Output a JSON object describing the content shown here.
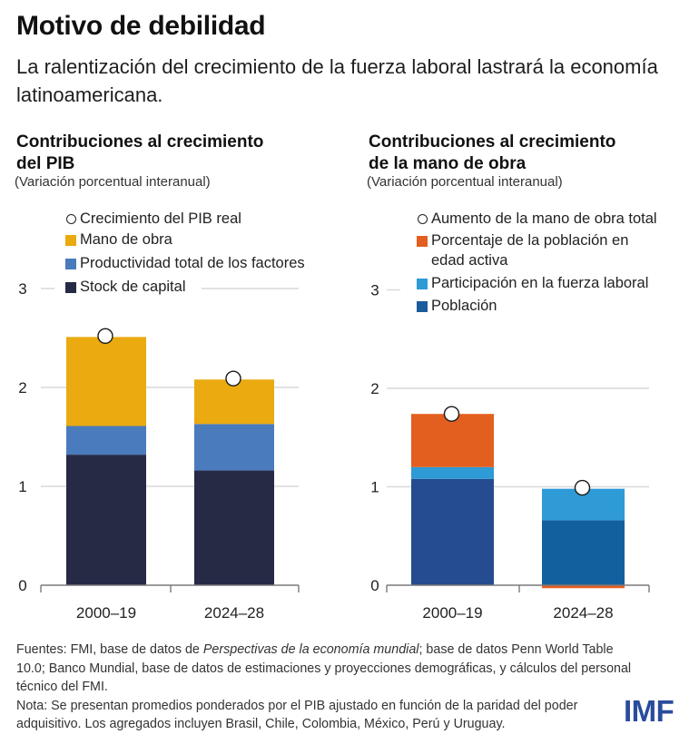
{
  "header": {
    "title": "Motivo de debilidad",
    "subtitle": "La ralentización del crecimiento de la fuerza laboral lastrará la economía latinoamericana."
  },
  "footer": {
    "sources_prefix": "Fuentes: FMI, base de datos de ",
    "sources_italic": "Perspectivas de la economía mundial",
    "sources_suffix": "; base de datos Penn World Table 10.0; Banco Mundial, base de datos de estimaciones y proyecciones demográficas, y cálculos del personal técnico del FMI.",
    "note": "Nota: Se presentan promedios ponderados por el PIB ajustado en función de la paridad del poder adquisitivo. Los agregados incluyen Brasil, Chile, Colombia, México, Perú y Uruguay.",
    "logo": "IMF"
  },
  "colors": {
    "gridline": "#d9d9d9",
    "axis": "#7a7a7a",
    "logo": "#2a4c9c"
  },
  "chart_data": [
    {
      "type": "bar",
      "stacked": true,
      "title_line1": "Contribuciones al crecimiento",
      "title_line2": "del PIB",
      "subtitle": "(Variación porcentual interanual)",
      "categories": [
        "2000–19",
        "2024–28"
      ],
      "ylim": [
        0,
        3
      ],
      "yticks": [
        "0",
        "1",
        "2",
        "3"
      ],
      "grid": true,
      "legend_position": "top-left",
      "series": [
        {
          "name": "Stock de capital",
          "color": "#262a45",
          "values": [
            1.32,
            1.16
          ]
        },
        {
          "name": "Productividad total de los factores",
          "color": "#4a7bbd",
          "values": [
            0.29,
            0.47
          ]
        },
        {
          "name": "Mano de obra",
          "color": "#eaaa10",
          "values": [
            0.9,
            0.45
          ]
        }
      ],
      "markers": {
        "name": "Crecimiento del PIB real",
        "values": [
          2.52,
          2.09
        ]
      },
      "legend_order": [
        "Crecimiento del PIB real",
        "Mano de obra",
        "Productividad total de los factores",
        "Stock de capital"
      ]
    },
    {
      "type": "bar",
      "stacked": true,
      "title_line1": "Contribuciones al crecimiento",
      "title_line2": "de la mano de obra",
      "subtitle": "(Variación porcentual interanual)",
      "categories": [
        "2000–19",
        "2024–28"
      ],
      "ylim": [
        0,
        3
      ],
      "yticks": [
        "0",
        "1",
        "2",
        "3"
      ],
      "grid": true,
      "legend_position": "top-left",
      "series": [
        {
          "name": "Población",
          "color": "#1a5c9c",
          "point_colors": [
            "#244c8e",
            "#13609e"
          ],
          "values": [
            1.08,
            0.66
          ]
        },
        {
          "name": "Participación en la fuerza laboral",
          "color": "#2e9ad6",
          "values": [
            0.12,
            0.32
          ]
        },
        {
          "name": "Porcentaje de la población en edad activa",
          "color": "#e35f1f",
          "values": [
            0.54,
            -0.03
          ]
        }
      ],
      "markers": {
        "name": "Aumento de la mano de obra total",
        "values": [
          1.74,
          0.99
        ]
      },
      "legend_order": [
        "Aumento de la mano de obra total",
        "Porcentaje de la población en edad activa",
        "Participación en la fuerza laboral",
        "Población"
      ],
      "legend_wrapped_labels": {
        "Porcentaje de la población en edad activa": [
          "Porcentaje de la población en",
          "edad activa"
        ]
      }
    }
  ]
}
